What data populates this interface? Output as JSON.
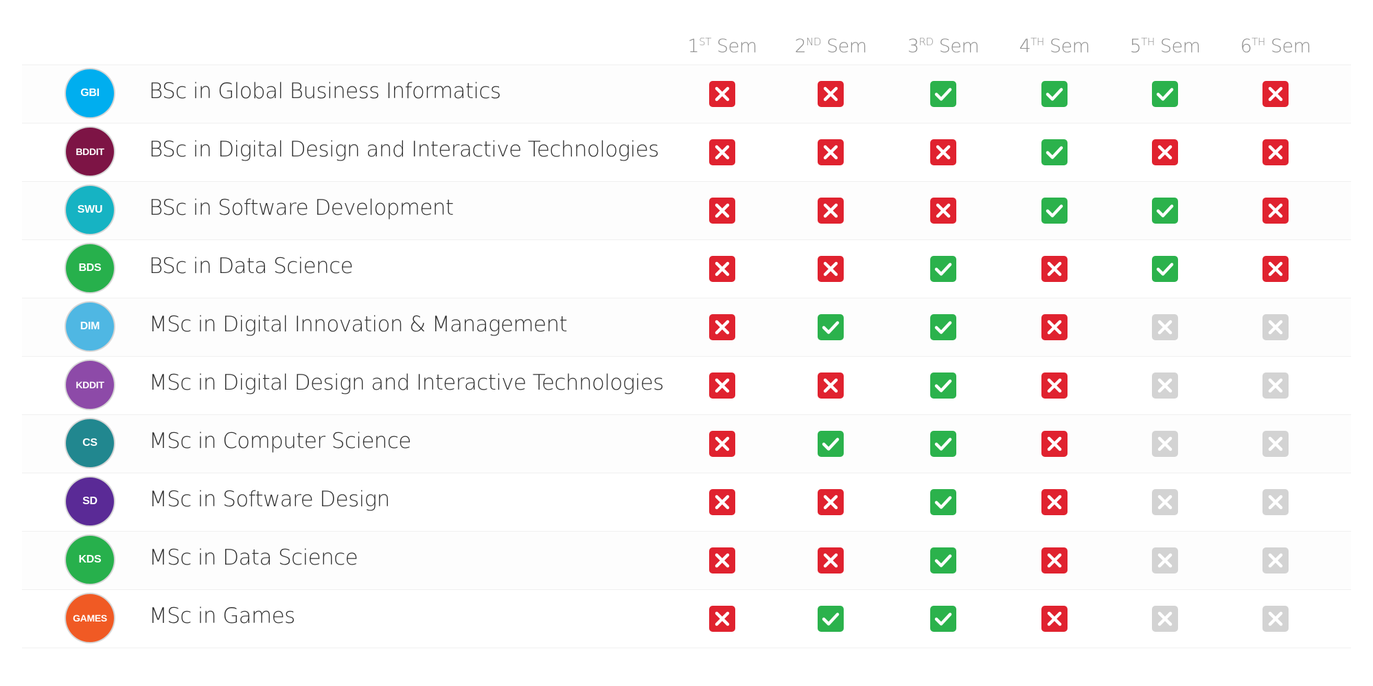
{
  "colors": {
    "yes": "#2bb24c",
    "no": "#e0222f",
    "na": "#d3d3d3"
  },
  "semesters": [
    {
      "num": "1",
      "sup": "ST",
      "label": "Sem"
    },
    {
      "num": "2",
      "sup": "ND",
      "label": "Sem"
    },
    {
      "num": "3",
      "sup": "RD",
      "label": "Sem"
    },
    {
      "num": "4",
      "sup": "TH",
      "label": "Sem"
    },
    {
      "num": "5",
      "sup": "TH",
      "label": "Sem"
    },
    {
      "num": "6",
      "sup": "TH",
      "label": "Sem"
    }
  ],
  "programs": [
    {
      "code": "GBI",
      "color": "#00aeef",
      "name": "BSc in Global Business Informatics",
      "status": [
        "no",
        "no",
        "yes",
        "yes",
        "yes",
        "no"
      ]
    },
    {
      "code": "BDDIT",
      "color": "#7d1445",
      "name": "BSc in Digital Design and Interactive Technologies",
      "status": [
        "no",
        "no",
        "no",
        "yes",
        "no",
        "no"
      ]
    },
    {
      "code": "SWU",
      "color": "#16b3c3",
      "name": "BSc in Software Development",
      "status": [
        "no",
        "no",
        "no",
        "yes",
        "yes",
        "no"
      ]
    },
    {
      "code": "BDS",
      "color": "#27b04c",
      "name": "BSc in Data Science",
      "status": [
        "no",
        "no",
        "yes",
        "no",
        "yes",
        "no"
      ]
    },
    {
      "code": "DIM",
      "color": "#4fb7e3",
      "name": "MSc in Digital Innovation & Management",
      "status": [
        "no",
        "yes",
        "yes",
        "no",
        "na",
        "na"
      ]
    },
    {
      "code": "KDDIT",
      "color": "#8d4aa8",
      "name": "MSc in Digital Design and Interactive Technologies",
      "status": [
        "no",
        "no",
        "yes",
        "no",
        "na",
        "na"
      ]
    },
    {
      "code": "CS",
      "color": "#21878f",
      "name": "MSc in Computer Science",
      "status": [
        "no",
        "yes",
        "yes",
        "no",
        "na",
        "na"
      ]
    },
    {
      "code": "SD",
      "color": "#5a2a96",
      "name": "MSc in Software Design",
      "status": [
        "no",
        "no",
        "yes",
        "no",
        "na",
        "na"
      ]
    },
    {
      "code": "KDS",
      "color": "#27b04c",
      "name": "MSc in Data Science",
      "status": [
        "no",
        "no",
        "yes",
        "no",
        "na",
        "na"
      ]
    },
    {
      "code": "GAMES",
      "color": "#f05a24",
      "name": "MSc in Games",
      "status": [
        "no",
        "yes",
        "yes",
        "no",
        "na",
        "na"
      ]
    }
  ]
}
